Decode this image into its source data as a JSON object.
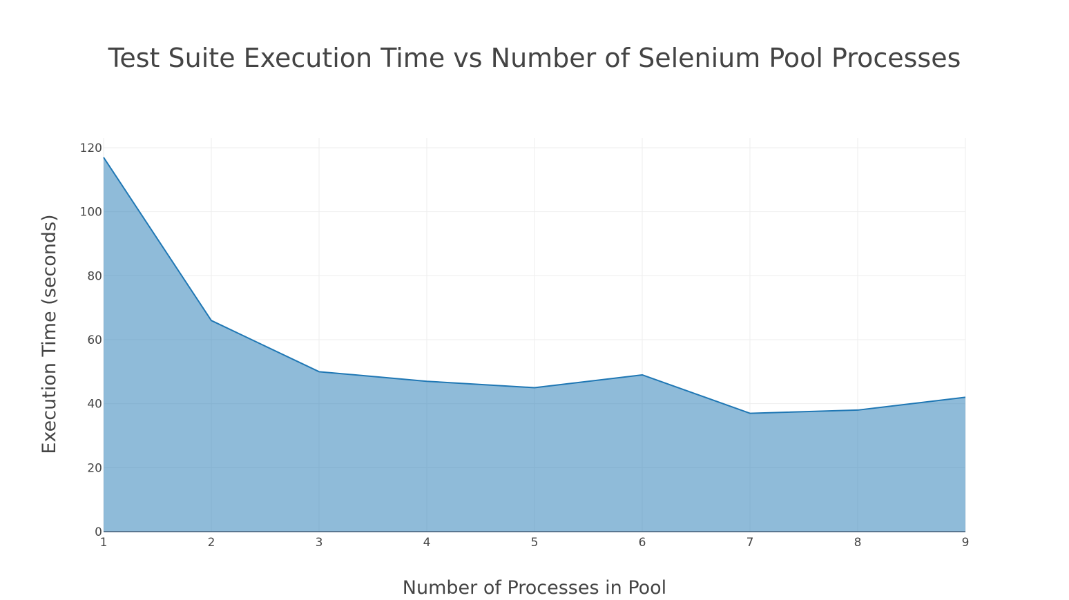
{
  "chart_data": {
    "type": "area",
    "title": "Test Suite Execution Time vs Number of Selenium Pool Processes",
    "xlabel": "Number of Processes in Pool",
    "ylabel": "Execution Time (seconds)",
    "x": [
      1,
      2,
      3,
      4,
      5,
      6,
      7,
      8,
      9
    ],
    "series": [
      {
        "values": [
          117,
          66,
          50,
          47,
          45,
          49,
          37,
          38,
          42
        ]
      }
    ],
    "xlim": [
      1,
      9
    ],
    "ylim": [
      0,
      120
    ],
    "xticks": [
      "1",
      "2",
      "3",
      "4",
      "5",
      "6",
      "7",
      "8",
      "9"
    ],
    "yticks": [
      "0",
      "20",
      "40",
      "60",
      "80",
      "100",
      "120"
    ],
    "grid": true,
    "legend": "none",
    "colors": {
      "line": "#1f77b4",
      "fill": "#1f77b4",
      "grid": "#eeeeee",
      "text": "#444444"
    }
  }
}
